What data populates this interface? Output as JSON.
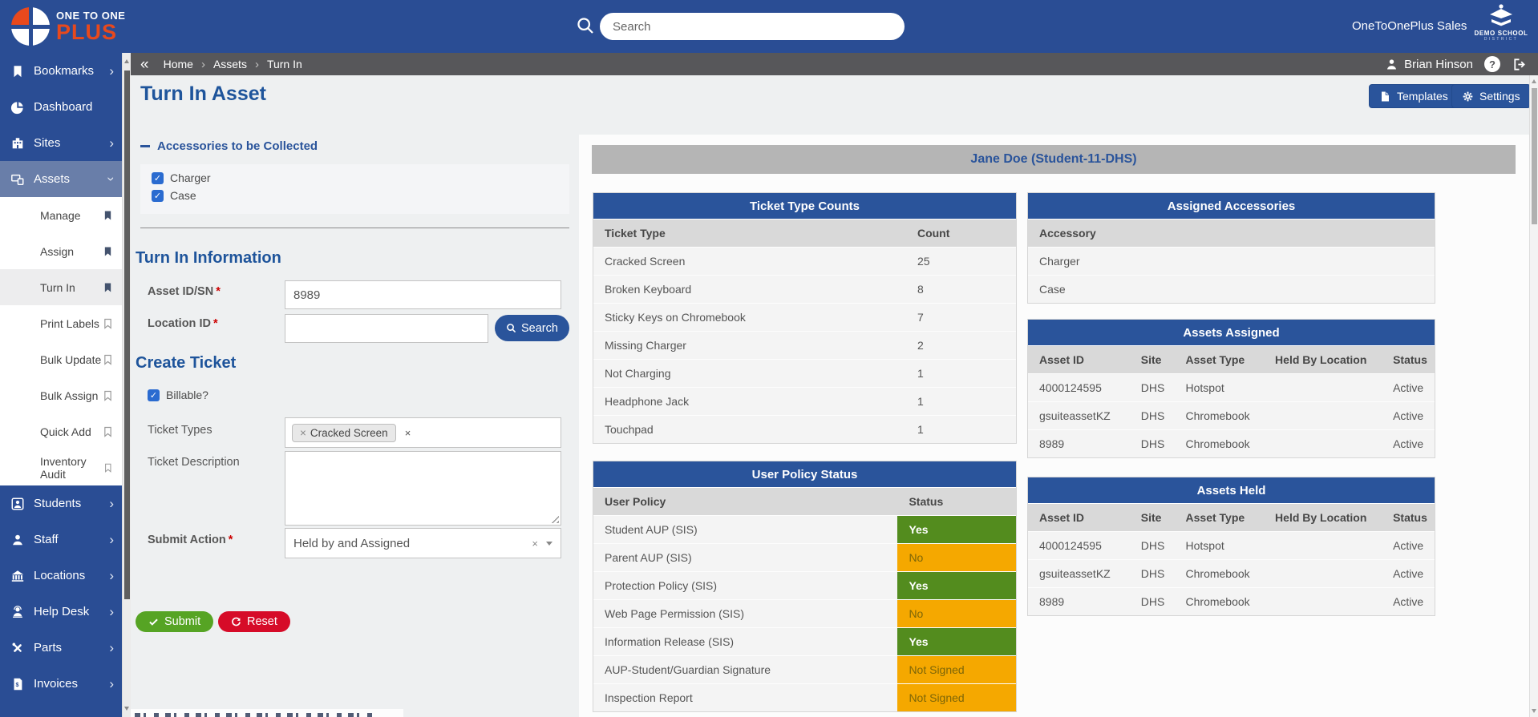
{
  "brand": {
    "line1": "ONE TO ONE",
    "line2": "PLUS"
  },
  "topbar": {
    "search_placeholder": "Search",
    "account_label": "OneToOnePlus Sales",
    "district_name": "DEMO SCHOOL",
    "district_sub": "DISTRICT"
  },
  "breadcrumb": {
    "back_glyph": "«",
    "items": [
      "Home",
      "Assets",
      "Turn In"
    ],
    "user_name": "Brian Hinson",
    "help_glyph": "?"
  },
  "page": {
    "title": "Turn In Asset",
    "templates_button": "Templates",
    "settings_button": "Settings"
  },
  "sidebar": {
    "items": [
      {
        "label": "Bookmarks"
      },
      {
        "label": "Dashboard"
      },
      {
        "label": "Sites"
      },
      {
        "label": "Assets"
      },
      {
        "label": "Students"
      },
      {
        "label": "Staff"
      },
      {
        "label": "Locations"
      },
      {
        "label": "Help Desk"
      },
      {
        "label": "Parts"
      },
      {
        "label": "Invoices"
      }
    ],
    "assets_submenu": [
      {
        "label": "Manage",
        "bookmark": "filled",
        "active": false
      },
      {
        "label": "Assign",
        "bookmark": "filled",
        "active": false
      },
      {
        "label": "Turn In",
        "bookmark": "filled",
        "active": true
      },
      {
        "label": "Print Labels",
        "bookmark": "outline",
        "active": false
      },
      {
        "label": "Bulk Update",
        "bookmark": "outline",
        "active": false
      },
      {
        "label": "Bulk Assign",
        "bookmark": "outline",
        "active": false
      },
      {
        "label": "Quick Add",
        "bookmark": "outline",
        "active": false
      },
      {
        "label": "Inventory Audit",
        "bookmark": "outline",
        "active": false
      }
    ]
  },
  "form": {
    "accessories_title": "Accessories to be Collected",
    "accessories": [
      {
        "label": "Charger",
        "checked": true
      },
      {
        "label": "Case",
        "checked": true
      }
    ],
    "turn_in_title": "Turn In Information",
    "asset_id_label": "Asset ID/SN",
    "asset_id_value": "8989",
    "location_id_label": "Location ID",
    "location_id_value": "",
    "search_button": "Search",
    "create_ticket_title": "Create Ticket",
    "billable_label": "Billable?",
    "billable_checked": true,
    "ticket_types_label": "Ticket Types",
    "ticket_type_tag": "Cracked Screen",
    "tag_remove_glyph": "×",
    "clear_glyph": "×",
    "ticket_description_label": "Ticket Description",
    "submit_action_label": "Submit Action",
    "submit_action_value": "Held by and Assigned",
    "submit_button": "Submit",
    "reset_button": "Reset",
    "required_marker": "*"
  },
  "student_banner": "Jane Doe (Student-11-DHS)",
  "tables": {
    "ticket_type_counts": {
      "title": "Ticket Type Counts",
      "columns": [
        "Ticket Type",
        "Count"
      ],
      "rows": [
        [
          "Cracked Screen",
          "25"
        ],
        [
          "Broken Keyboard",
          "8"
        ],
        [
          "Sticky Keys on Chromebook",
          "7"
        ],
        [
          "Missing Charger",
          "2"
        ],
        [
          "Not Charging",
          "1"
        ],
        [
          "Headphone Jack",
          "1"
        ],
        [
          "Touchpad",
          "1"
        ]
      ]
    },
    "user_policy_status": {
      "title": "User Policy Status",
      "columns": [
        "User Policy",
        "Status"
      ],
      "rows": [
        [
          "Student AUP (SIS)",
          {
            "text": "Yes",
            "tone": "green"
          }
        ],
        [
          "Parent AUP (SIS)",
          {
            "text": "No",
            "tone": "orange"
          }
        ],
        [
          "Protection Policy (SIS)",
          {
            "text": "Yes",
            "tone": "green"
          }
        ],
        [
          "Web Page Permission (SIS)",
          {
            "text": "No",
            "tone": "orange"
          }
        ],
        [
          "Information Release (SIS)",
          {
            "text": "Yes",
            "tone": "green"
          }
        ],
        [
          "AUP-Student/Guardian Signature",
          {
            "text": "Not Signed",
            "tone": "orange"
          }
        ],
        [
          "Inspection Report",
          {
            "text": "Not Signed",
            "tone": "orange"
          }
        ]
      ]
    },
    "assigned_accessories": {
      "title": "Assigned Accessories",
      "columns": [
        "Accessory"
      ],
      "rows": [
        [
          "Charger"
        ],
        [
          "Case"
        ]
      ]
    },
    "assets_assigned": {
      "title": "Assets Assigned",
      "columns": [
        "Asset ID",
        "Site",
        "Asset Type",
        "Held By Location",
        "Status"
      ],
      "rows": [
        [
          "4000124595",
          "DHS",
          "Hotspot",
          "",
          "Active"
        ],
        [
          "gsuiteassetKZ",
          "DHS",
          "Chromebook",
          "",
          "Active"
        ],
        [
          "8989",
          "DHS",
          "Chromebook",
          "",
          "Active"
        ]
      ]
    },
    "assets_held": {
      "title": "Assets Held",
      "columns": [
        "Asset ID",
        "Site",
        "Asset Type",
        "Held By Location",
        "Status"
      ],
      "rows": [
        [
          "4000124595",
          "DHS",
          "Hotspot",
          "",
          "Active"
        ],
        [
          "gsuiteassetKZ",
          "DHS",
          "Chromebook",
          "",
          "Active"
        ],
        [
          "8989",
          "DHS",
          "Chromebook",
          "",
          "Active"
        ]
      ]
    }
  },
  "colors": {
    "nav_blue": "#2a4d94",
    "accent_blue": "#2a549b",
    "title_blue": "#1e549b",
    "green": "#538c1e",
    "orange": "#f5a800",
    "submit_green": "#56a424",
    "reset_red": "#d60b28",
    "breadcrumb_gray": "#57575a",
    "banner_gray": "#b5b5b5"
  }
}
